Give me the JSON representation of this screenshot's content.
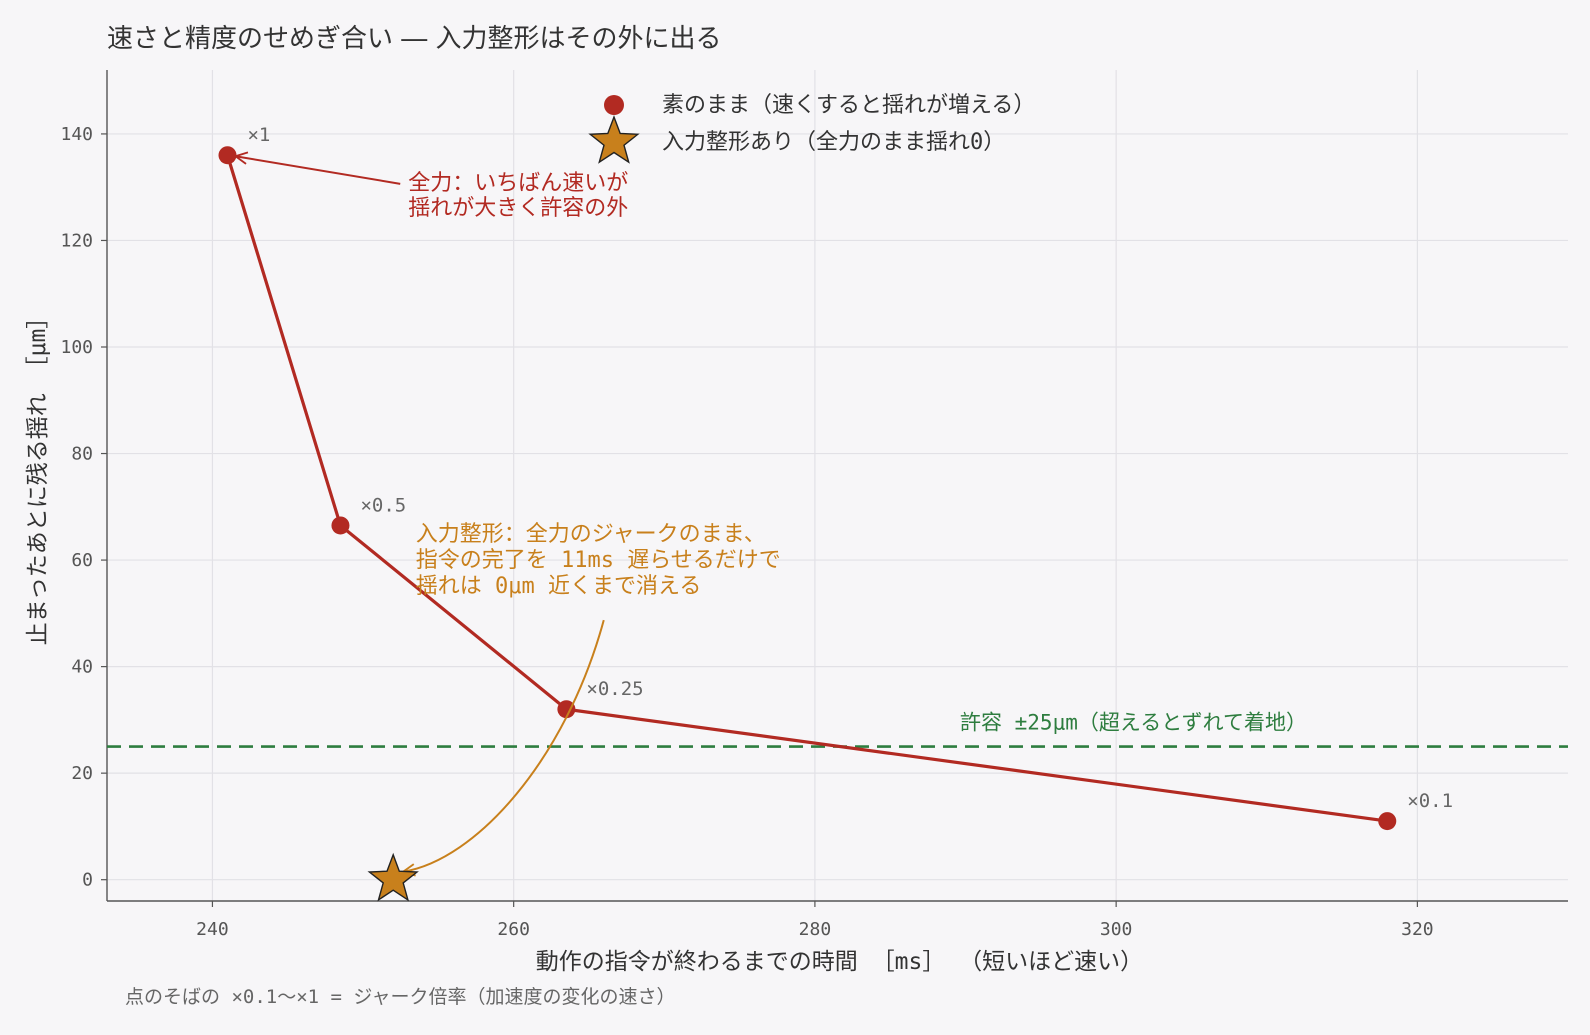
{
  "title": "速さと精度のせめぎ合い ― 入力整形はその外に出る",
  "footnote": "点のそばの ×0.1〜×1 = ジャーク倍率（加速度の変化の速さ）",
  "colors": {
    "raw": "#b22a22",
    "shaped": "#c8801c",
    "tolerance": "#2e7d3f",
    "grid": "#e2e1e6",
    "axis": "#555555",
    "background": "#f7f6f8"
  },
  "chart_data": {
    "type": "scatter",
    "title": "速さと精度のせめぎ合い ― 入力整形はその外に出る",
    "xlabel": "動作の指令が終わるまでの時間 ［ms］ （短いほど速い）",
    "ylabel": "止まったあとに残る揺れ ［μm］",
    "xlim": [
      233,
      330
    ],
    "ylim": [
      -4,
      152
    ],
    "xticks": [
      240,
      260,
      280,
      300,
      320
    ],
    "yticks": [
      0,
      20,
      40,
      60,
      80,
      100,
      120,
      140
    ],
    "grid": true,
    "legend_position": "top-center",
    "series": [
      {
        "name": "素のまま（速くすると揺れが増える）",
        "marker": "circle",
        "line": true,
        "color": "#b22a22",
        "points": [
          {
            "x": 241,
            "y": 136,
            "label": "×1"
          },
          {
            "x": 248.5,
            "y": 66.5,
            "label": "×0.5"
          },
          {
            "x": 263.5,
            "y": 32,
            "label": "×0.25"
          },
          {
            "x": 318,
            "y": 11,
            "label": "×0.1"
          }
        ]
      },
      {
        "name": "入力整形あり（全力のまま揺れ0）",
        "marker": "star",
        "line": false,
        "color": "#c8801c",
        "points": [
          {
            "x": 252,
            "y": 0
          }
        ]
      }
    ],
    "reference_lines": [
      {
        "axis": "y",
        "value": 25,
        "style": "dashed",
        "label": "許容 ±25μm（超えるとずれて着地）"
      }
    ],
    "annotations": [
      {
        "lines": [
          "全力：いちばん速いが",
          "揺れが大きく許容の外"
        ],
        "target": {
          "x": 241,
          "y": 136
        },
        "text_at": {
          "x": 253,
          "y": 128
        },
        "color": "raw"
      },
      {
        "lines": [
          "入力整形：全力のジャークのまま、",
          "指令の完了を 11ms 遅らせるだけで",
          "揺れは 0μm 近くまで消える"
        ],
        "target": {
          "x": 252,
          "y": 0
        },
        "text_at": {
          "x": 253.5,
          "y": 60
        },
        "color": "shaped"
      }
    ]
  }
}
